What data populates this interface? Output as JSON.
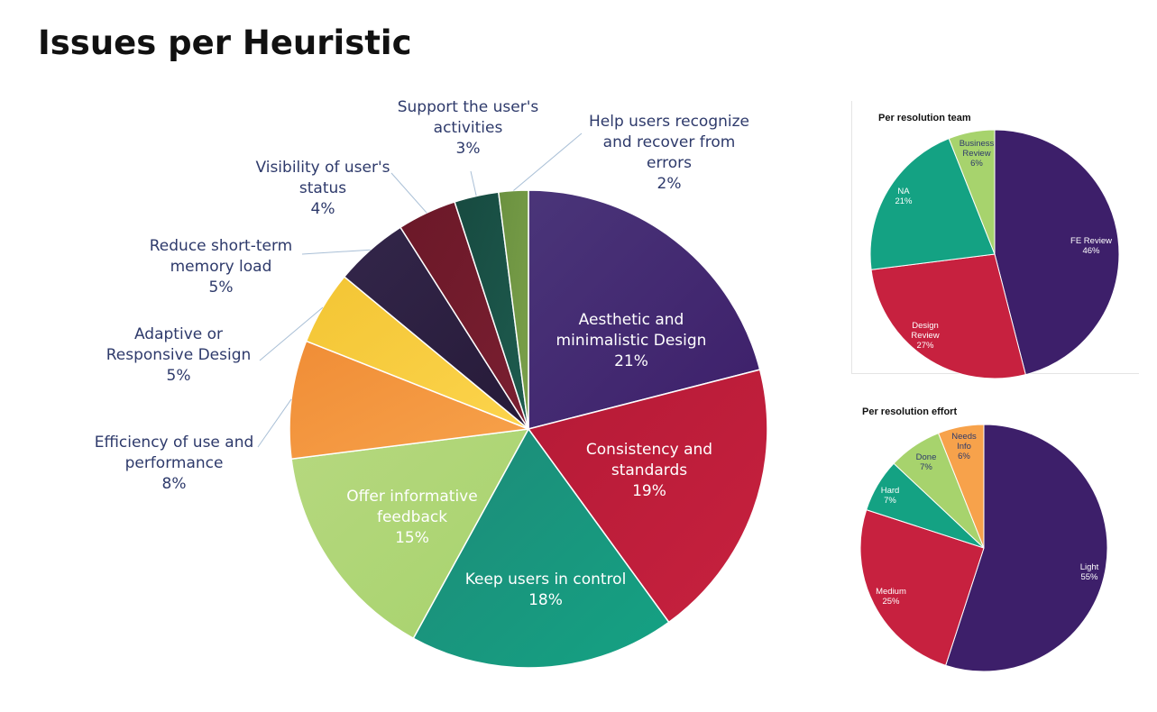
{
  "page": {
    "title": "Issues per Heuristic"
  },
  "chart_data": [
    {
      "type": "pie",
      "title": "",
      "slices": [
        {
          "label": "Aesthetic and minimalistic Design",
          "lines": [
            "Aesthetic and",
            "minimalistic Design"
          ],
          "value": 21,
          "pct_text": "21%",
          "color": "#3d1f6a",
          "color2": "#4a3579",
          "inside": true
        },
        {
          "label": "Consistency and standards",
          "lines": [
            "Consistency and",
            "standards"
          ],
          "value": 19,
          "pct_text": "19%",
          "color": "#c7213f",
          "color2": "#b51a36",
          "inside": true
        },
        {
          "label": "Keep users in control",
          "lines": [
            "Keep users in control"
          ],
          "value": 18,
          "pct_text": "18%",
          "color": "#14a283",
          "color2": "#1e8a78",
          "inside": true
        },
        {
          "label": "Offer informative feedback",
          "lines": [
            "Offer informative",
            "feedback"
          ],
          "value": 15,
          "pct_text": "15%",
          "color": "#a7d36d",
          "color2": "#b6d87f",
          "inside": true
        },
        {
          "label": "Efficiency of use and performance",
          "lines": [
            "Efficiency of use and",
            "performance"
          ],
          "value": 8,
          "pct_text": "8%",
          "color": "#f7a24b",
          "color2": "#f08d36",
          "inside": false
        },
        {
          "label": "Adaptive or Responsive Design",
          "lines": [
            "Adaptive or",
            "Responsive Design"
          ],
          "value": 5,
          "pct_text": "5%",
          "color": "#fcd44c",
          "color2": "#f3c534",
          "inside": false
        },
        {
          "label": "Reduce short-term memory load",
          "lines": [
            "Reduce short-term",
            "memory load"
          ],
          "value": 5,
          "pct_text": "5%",
          "color": "#261a38",
          "color2": "#33264a",
          "inside": false
        },
        {
          "label": "Visibility of user's status",
          "lines": [
            "Visibility of user's",
            "status"
          ],
          "value": 4,
          "pct_text": "4%",
          "color": "#7a1f31",
          "color2": "#6b1828",
          "inside": false
        },
        {
          "label": "Support the user's activities",
          "lines": [
            "Support the user's",
            "activities"
          ],
          "value": 3,
          "pct_text": "3%",
          "color": "#1e5c4f",
          "color2": "#174a40",
          "inside": false
        },
        {
          "label": "Help users recognize and recover from errors",
          "lines": [
            "Help users recognize",
            "and recover from",
            "errors"
          ],
          "value": 2,
          "pct_text": "2%",
          "color": "#7aa04a",
          "color2": "#6b9140",
          "inside": false
        }
      ]
    },
    {
      "type": "pie",
      "title": "Per resolution team",
      "slices": [
        {
          "label": "FE Review",
          "lines": [
            "FE Review"
          ],
          "value": 46,
          "pct_text": "46%",
          "color": "#3d1f6a",
          "inside": true
        },
        {
          "label": "Design Review",
          "lines": [
            "Design",
            "Review"
          ],
          "value": 27,
          "pct_text": "27%",
          "color": "#c7213f",
          "inside": true
        },
        {
          "label": "NA",
          "lines": [
            "NA"
          ],
          "value": 21,
          "pct_text": "21%",
          "color": "#14a283",
          "inside": true
        },
        {
          "label": "Business Review",
          "lines": [
            "Business",
            "Review"
          ],
          "value": 6,
          "pct_text": "6%",
          "color": "#a7d36d",
          "inside": false
        }
      ]
    },
    {
      "type": "pie",
      "title": "Per resolution effort",
      "slices": [
        {
          "label": "Light",
          "lines": [
            "Light"
          ],
          "value": 55,
          "pct_text": "55%",
          "color": "#3d1f6a",
          "inside": true
        },
        {
          "label": "Medium",
          "lines": [
            "Medium"
          ],
          "value": 25,
          "pct_text": "25%",
          "color": "#c7213f",
          "inside": true
        },
        {
          "label": "Hard",
          "lines": [
            "Hard"
          ],
          "value": 7,
          "pct_text": "7%",
          "color": "#14a283",
          "inside": true
        },
        {
          "label": "Done",
          "lines": [
            "Done"
          ],
          "value": 7,
          "pct_text": "7%",
          "color": "#a7d36d",
          "inside": false
        },
        {
          "label": "Needs Info",
          "lines": [
            "Needs",
            "Info"
          ],
          "value": 6,
          "pct_text": "6%",
          "color": "#f7a24b",
          "inside": false
        }
      ]
    }
  ]
}
